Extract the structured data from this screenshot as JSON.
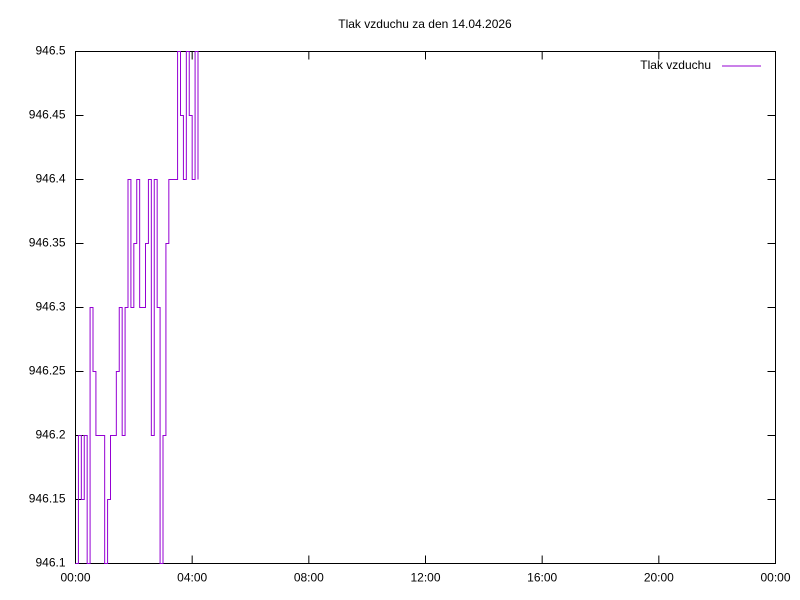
{
  "chart_data": {
    "type": "line",
    "title": "Tlak vzduchu za den 14.04.2026",
    "x": [
      0,
      0.1,
      0.2,
      0.3,
      0.4,
      0.5,
      0.6,
      0.7,
      0.8,
      0.9,
      1,
      1.1,
      1.2,
      1.3,
      1.4,
      1.5,
      1.6,
      1.7,
      1.8,
      1.9,
      2,
      2.1,
      2.2,
      2.3,
      2.4,
      2.5,
      2.6,
      2.7,
      2.8,
      2.9,
      3,
      3.1,
      3.2,
      3.3,
      3.4,
      3.5,
      3.6,
      3.7,
      3.8,
      3.9,
      4,
      4.1,
      4.2
    ],
    "series": [
      {
        "name": "Tlak vzduchu",
        "color": "#9400d3",
        "values": [
          946.1,
          946.2,
          946.15,
          946.2,
          946.1,
          946.3,
          946.25,
          946.2,
          946.2,
          946.2,
          946.1,
          946.15,
          946.2,
          946.2,
          946.25,
          946.3,
          946.2,
          946.3,
          946.4,
          946.3,
          946.35,
          946.4,
          946.3,
          946.3,
          946.35,
          946.4,
          946.2,
          946.4,
          946.3,
          946.1,
          946.2,
          946.35,
          946.4,
          946.4,
          946.4,
          946.5,
          946.45,
          946.4,
          946.5,
          946.45,
          946.4,
          946.5,
          946.4
        ]
      }
    ],
    "xlim": [
      0,
      24
    ],
    "xticks": [
      {
        "value": 0,
        "label": "00:00"
      },
      {
        "value": 4,
        "label": "04:00"
      },
      {
        "value": 8,
        "label": "08:00"
      },
      {
        "value": 12,
        "label": "12:00"
      },
      {
        "value": 16,
        "label": "16:00"
      },
      {
        "value": 20,
        "label": "20:00"
      },
      {
        "value": 24,
        "label": "00:00"
      }
    ],
    "ylim": [
      946.1,
      946.5
    ],
    "yticks": [
      946.1,
      946.15,
      946.2,
      946.25,
      946.3,
      946.35,
      946.4,
      946.45,
      946.5
    ],
    "legend": "top-right",
    "grid": false
  }
}
